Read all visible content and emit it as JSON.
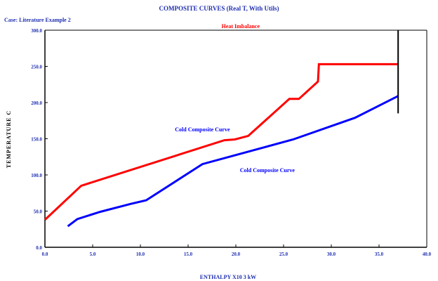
{
  "header": {
    "title": "COMPOSITE CURVES (Real T, With Utils)",
    "case_label": "Case: Literature Example 2"
  },
  "colors": {
    "hot": "#ff0000",
    "cold": "#0000ff",
    "pinch": "#000000",
    "text": "#1f2fb0"
  },
  "chart_data": {
    "type": "line",
    "title": "COMPOSITE CURVES (Real T, With Utils)",
    "xlabel": "ENTHALPY X10 3 kW",
    "ylabel": "TEMPERATURE C",
    "xlim": [
      0,
      40
    ],
    "ylim": [
      0,
      300
    ],
    "grid": false,
    "x_ticks": [
      "0.0",
      "5.0",
      "10.0",
      "15.0",
      "20.0",
      "25.0",
      "30.0",
      "35.0",
      "40.0"
    ],
    "y_ticks": [
      "0.0",
      "50.0",
      "100.0",
      "150.0",
      "200.0",
      "250.0",
      "300.0"
    ],
    "annotations": [
      {
        "text": "Heat Imbalance",
        "color": "red",
        "x": 20.5,
        "y": 303
      },
      {
        "text": "Cold Composite Curve",
        "color": "blue",
        "x": 16.5,
        "y": 160
      },
      {
        "text": "Cold Composite Curve",
        "color": "blue",
        "x": 23.3,
        "y": 104
      }
    ],
    "series": [
      {
        "color": "red",
        "points": [
          [
            0.0,
            38
          ],
          [
            3.8,
            85
          ],
          [
            18.8,
            148
          ],
          [
            19.9,
            149
          ],
          [
            21.3,
            154
          ],
          [
            25.6,
            205
          ],
          [
            26.6,
            205
          ],
          [
            28.6,
            229
          ],
          [
            28.7,
            253
          ],
          [
            37.0,
            253
          ]
        ]
      },
      {
        "color": "blue",
        "points": [
          [
            2.4,
            29
          ],
          [
            3.4,
            39
          ],
          [
            5.8,
            49
          ],
          [
            9.0,
            60
          ],
          [
            10.6,
            65
          ],
          [
            16.5,
            115
          ],
          [
            26.0,
            149
          ],
          [
            32.5,
            179
          ],
          [
            37.0,
            209
          ]
        ]
      },
      {
        "color": "black",
        "points": [
          [
            37.0,
            300
          ],
          [
            37.0,
            185
          ]
        ]
      }
    ]
  }
}
